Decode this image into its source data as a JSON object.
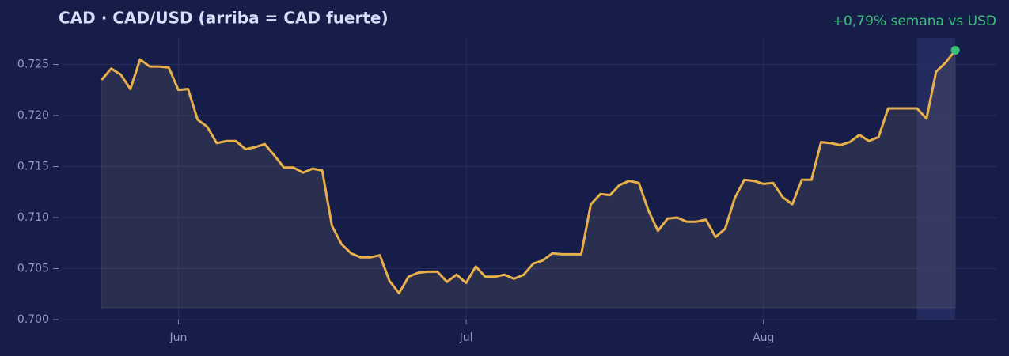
{
  "chart_data": {
    "type": "line",
    "title": "CAD  ·  CAD/USD (arriba = CAD fuerte)",
    "annotation": "+0,79% semana vs USD",
    "values": [
      0.7235,
      0.7246,
      0.724,
      0.7226,
      0.7255,
      0.7248,
      0.7248,
      0.7247,
      0.7225,
      0.7226,
      0.7196,
      0.7189,
      0.7173,
      0.7175,
      0.7175,
      0.7167,
      0.7169,
      0.7172,
      0.7161,
      0.7149,
      0.7149,
      0.7144,
      0.7148,
      0.7146,
      0.7092,
      0.7074,
      0.7065,
      0.7061,
      0.7061,
      0.7063,
      0.7038,
      0.7026,
      0.7042,
      0.7046,
      0.7047,
      0.7047,
      0.7037,
      0.7044,
      0.7036,
      0.7052,
      0.7042,
      0.7042,
      0.7044,
      0.704,
      0.7044,
      0.7055,
      0.7058,
      0.7065,
      0.7064,
      0.7064,
      0.7064,
      0.7113,
      0.7123,
      0.7122,
      0.7132,
      0.7136,
      0.7134,
      0.7107,
      0.7087,
      0.7099,
      0.71,
      0.7096,
      0.7096,
      0.7098,
      0.7081,
      0.7089,
      0.7119,
      0.7137,
      0.7136,
      0.7133,
      0.7134,
      0.712,
      0.7113,
      0.7137,
      0.7137,
      0.7174,
      0.7173,
      0.7171,
      0.7174,
      0.7181,
      0.7175,
      0.7179,
      0.7207,
      0.7207,
      0.7207,
      0.7207,
      0.7197,
      0.7243,
      0.7252,
      0.7264
    ],
    "color": "#e8b04a",
    "end_marker_color": "#3dbf7c",
    "annotation_color": "#3dbf7c",
    "highlight_range": [
      85,
      89
    ],
    "xlim": [
      -4,
      93.36
    ],
    "xticks": [
      {
        "value": 8,
        "label": "Jun"
      },
      {
        "value": 38,
        "label": "Jul"
      },
      {
        "value": 69,
        "label": "Aug"
      }
    ],
    "ylim": [
      0.7,
      0.7276
    ],
    "yticks": [
      {
        "value": 0.7,
        "label": "0.700"
      },
      0.705,
      {
        "value": 0.71,
        "label": "0.710"
      },
      0.715,
      {
        "value": 0.72,
        "label": "0.720"
      },
      0.725
    ],
    "grid": true
  }
}
